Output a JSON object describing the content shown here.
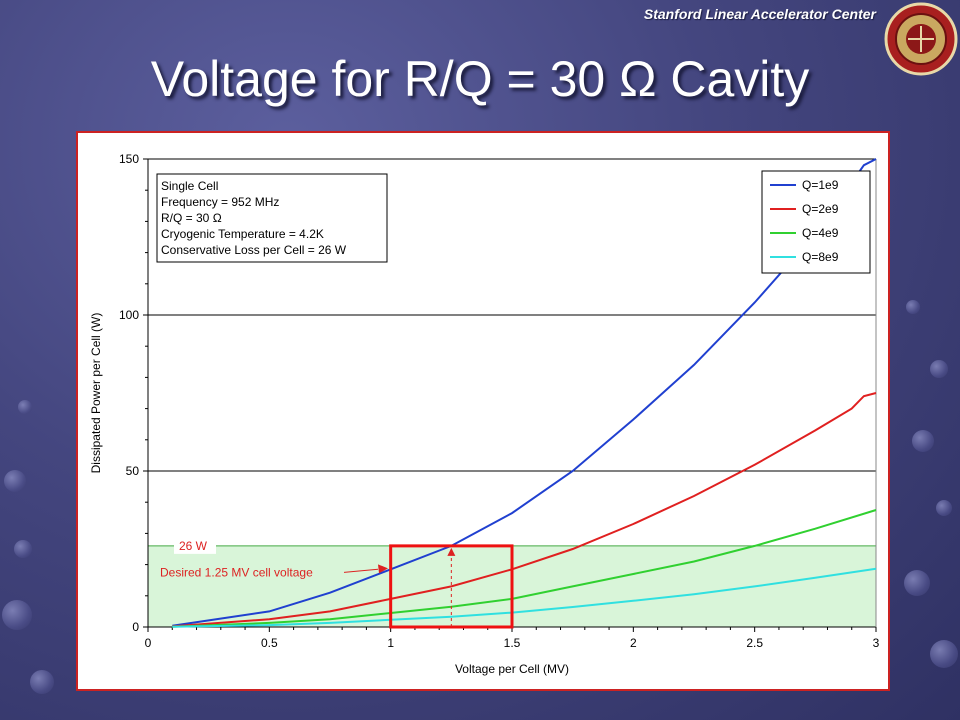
{
  "header": {
    "org": "Stanford Linear Accelerator Center",
    "title": "Voltage for R/Q = 30 Ω Cavity"
  },
  "chart_data": {
    "type": "line",
    "xlabel": "Voltage per Cell (MV)",
    "ylabel": "Dissipated Power per Cell (W)",
    "xlim": [
      0,
      3
    ],
    "ylim": [
      0,
      150
    ],
    "x_ticks": [
      "0",
      "0.5",
      "1",
      "1.5",
      "2",
      "2.5",
      "3"
    ],
    "y_ticks": [
      "0",
      "50",
      "100",
      "150"
    ],
    "grid": "horizontal at 50, 100, 150",
    "info_box": [
      "Single Cell",
      "Frequency = 952 MHz",
      "R/Q = 30 Ω",
      "Cryogenic Temperature = 4.2K",
      "Conservative Loss per Cell = 26 W"
    ],
    "series": [
      {
        "name": "Q=1e9",
        "color": "#2040d0",
        "x": [
          0.1,
          0.25,
          0.5,
          0.75,
          1.0,
          1.25,
          1.5,
          1.75,
          2.0,
          2.25,
          2.5,
          2.75,
          2.95,
          3.0
        ],
        "y": [
          0.4,
          2.1,
          5.0,
          11.0,
          18.5,
          26.0,
          36.5,
          50.0,
          66.5,
          84.0,
          104.0,
          126.0,
          148.0,
          150.0
        ]
      },
      {
        "name": "Q=2e9",
        "color": "#e02020",
        "x": [
          0.1,
          0.5,
          0.75,
          1.0,
          1.25,
          1.5,
          1.75,
          2.0,
          2.25,
          2.5,
          2.75,
          2.9,
          2.95,
          3.0
        ],
        "y": [
          0.2,
          2.5,
          5.0,
          9.0,
          13.0,
          18.5,
          25.0,
          33.0,
          42.0,
          52.0,
          63.0,
          70.0,
          74.0,
          75.0
        ]
      },
      {
        "name": "Q=4e9",
        "color": "#30d030",
        "x": [
          0.1,
          0.5,
          0.75,
          1.0,
          1.25,
          1.5,
          1.75,
          2.0,
          2.25,
          2.5,
          2.75,
          3.0
        ],
        "y": [
          0.1,
          1.3,
          2.5,
          4.5,
          6.5,
          9.0,
          13.0,
          17.0,
          21.0,
          26.0,
          31.5,
          37.5
        ]
      },
      {
        "name": "Q=8e9",
        "color": "#30e0e0",
        "x": [
          0.1,
          0.5,
          0.75,
          1.0,
          1.25,
          1.5,
          1.75,
          2.0,
          2.25,
          2.5,
          2.75,
          3.0
        ],
        "y": [
          0.05,
          0.6,
          1.3,
          2.3,
          3.3,
          4.6,
          6.4,
          8.4,
          10.5,
          13.0,
          15.8,
          18.7
        ]
      }
    ],
    "annotations": {
      "loss_label": "26 W",
      "loss_level_w": 26,
      "target_label": "Desired 1.25 MV cell voltage",
      "target_voltage_mv": 1.25,
      "target_box_x": [
        1.0,
        1.5
      ],
      "target_box_y": [
        0,
        26
      ]
    },
    "legend_position": "top-right"
  }
}
